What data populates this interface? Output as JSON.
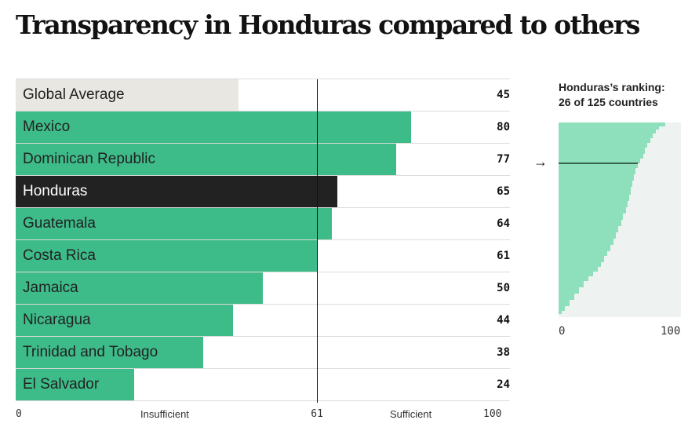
{
  "title": "Transparency in Honduras compared to others",
  "colors": {
    "average_bar": "#e9e7e2",
    "country_bar": "#3dbb88",
    "highlight_bar": "#222222",
    "mini_fill": "#8ee0bc",
    "mini_bg": "#eef2f1"
  },
  "chart_data": {
    "type": "bar",
    "orientation": "horizontal",
    "xlim": [
      0,
      100
    ],
    "reference_line": {
      "value": 61,
      "label": "61"
    },
    "categories": [
      "Global Average",
      "Mexico",
      "Dominican Republic",
      "Honduras",
      "Guatemala",
      "Costa Rica",
      "Jamaica",
      "Nicaragua",
      "Trinidad and Tobago",
      "El Salvador"
    ],
    "values": [
      45,
      80,
      77,
      65,
      64,
      61,
      50,
      44,
      38,
      24
    ],
    "highlight": "Honduras",
    "axis": {
      "min_label": "0",
      "max_label": "100",
      "low_label": "Insufficient",
      "high_label": "Sufficient"
    }
  },
  "ranking": {
    "title": "Honduras’s ranking:",
    "subtitle": "26 of 125 countries",
    "rank": 26,
    "total": 125,
    "arrow": "→",
    "xlim": [
      0,
      100
    ],
    "min_label": "0",
    "max_label": "100"
  }
}
